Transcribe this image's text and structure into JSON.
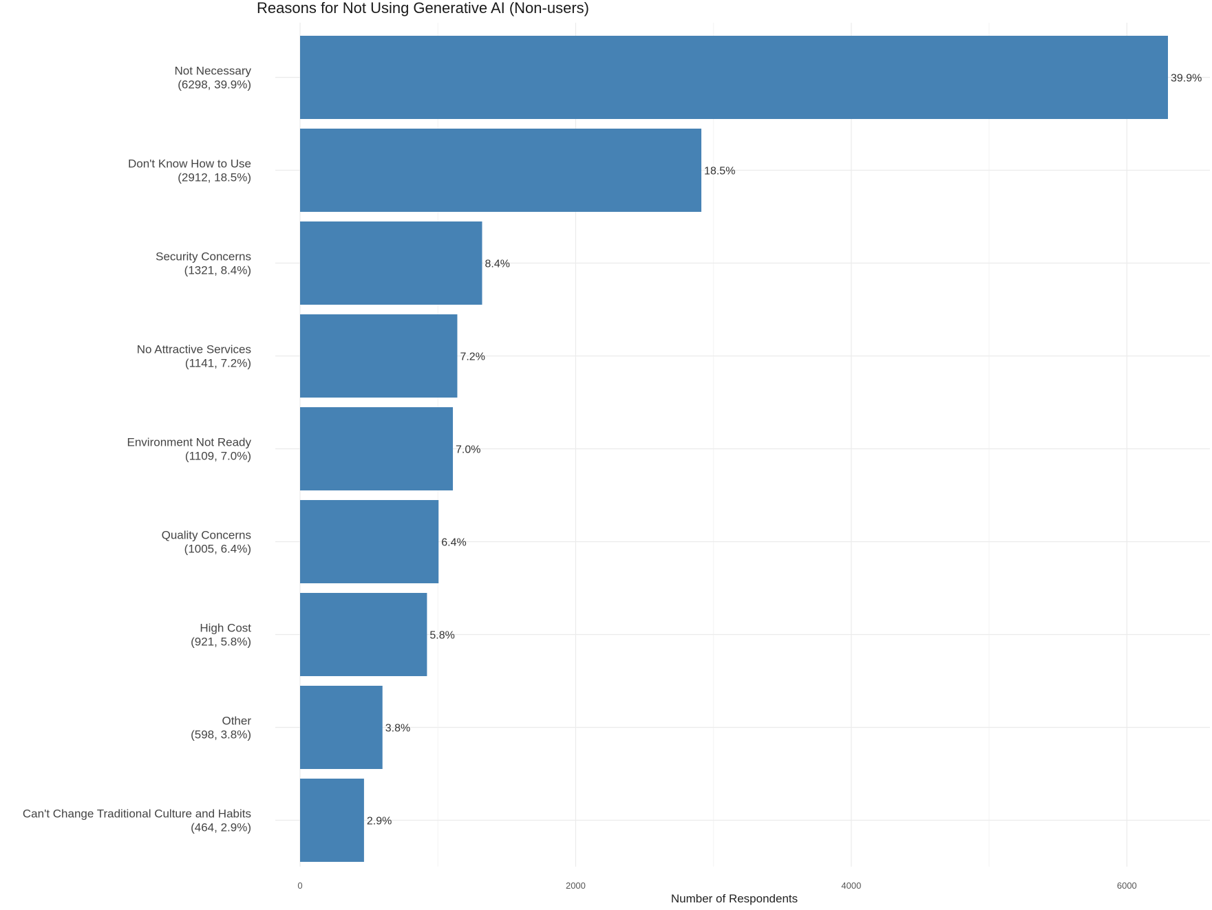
{
  "chart_data": {
    "type": "bar",
    "orientation": "horizontal",
    "title": "Reasons for Not Using Generative AI (Non-users)",
    "xlabel": "Number of Respondents",
    "ylabel": "",
    "xlim": [
      0,
      6300
    ],
    "xticks": [
      0,
      2000,
      4000,
      6000
    ],
    "grid": true,
    "bar_color": "#4682B4",
    "categories": [
      {
        "name": "Not Necessary",
        "detail": "(6298, 39.9%)",
        "value": 6298,
        "percent_label": "39.9%"
      },
      {
        "name": "Don't Know How to Use",
        "detail": "(2912, 18.5%)",
        "value": 2912,
        "percent_label": "18.5%"
      },
      {
        "name": "Security Concerns",
        "detail": "(1321, 8.4%)",
        "value": 1321,
        "percent_label": "8.4%"
      },
      {
        "name": "No Attractive Services",
        "detail": "(1141, 7.2%)",
        "value": 1141,
        "percent_label": "7.2%"
      },
      {
        "name": "Environment Not Ready",
        "detail": "(1109, 7.0%)",
        "value": 1109,
        "percent_label": "7.0%"
      },
      {
        "name": "Quality Concerns",
        "detail": "(1005, 6.4%)",
        "value": 1005,
        "percent_label": "6.4%"
      },
      {
        "name": "High Cost",
        "detail": "(921, 5.8%)",
        "value": 921,
        "percent_label": "5.8%"
      },
      {
        "name": "Other",
        "detail": "(598, 3.8%)",
        "value": 598,
        "percent_label": "3.8%"
      },
      {
        "name": "Can't Change Traditional Culture and Habits",
        "detail": "(464, 2.9%)",
        "value": 464,
        "percent_label": "2.9%"
      }
    ]
  }
}
